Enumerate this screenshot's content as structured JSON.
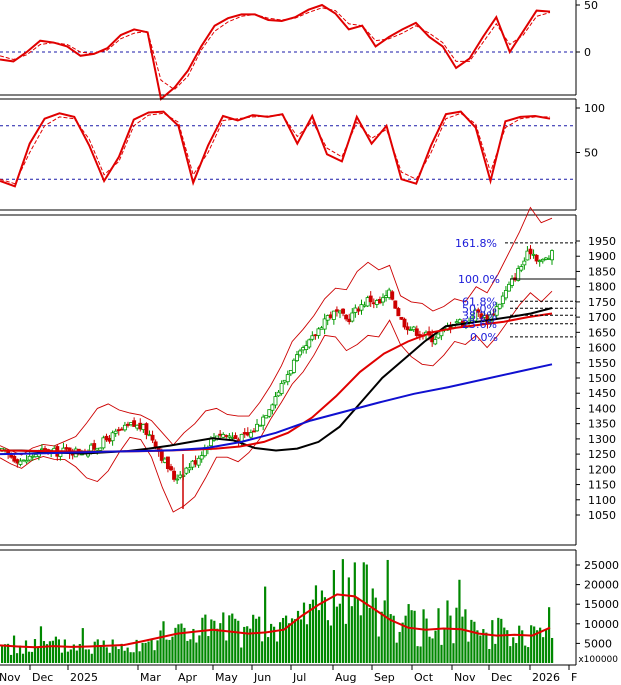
{
  "colors": {
    "background": "#ffffff",
    "indicator_line": "#e00000",
    "signal_line": "#e00000",
    "blue_dotted": "#1a1aa8",
    "candle_up": "#009900",
    "candle_down": "#cc0000",
    "ma_black": "#000000",
    "ma_red": "#e00000",
    "ma_blue": "#1010d0",
    "bollinger": "#cc0000",
    "fib_text": "#1a1ad8",
    "volume_bar": "#008800",
    "volume_ma": "#e00000",
    "axis": "#000000"
  },
  "chart_data": [
    {
      "type": "line",
      "panel": "rsi-top",
      "y_ticks": [
        "50",
        "0"
      ],
      "reference_levels": [
        0
      ],
      "series": [
        {
          "values": [
            -8,
            -10,
            0,
            12,
            10,
            6,
            -4,
            -2,
            4,
            18,
            24,
            21,
            -50,
            -38,
            -20,
            6,
            28,
            36,
            40,
            40,
            34,
            33,
            37,
            45,
            50,
            41,
            24,
            28,
            6,
            16,
            24,
            31,
            16,
            6,
            -17,
            -7,
            16,
            37,
            0,
            22,
            44,
            43
          ]
        },
        {
          "values": [
            -4,
            -8,
            -3,
            8,
            10,
            8,
            0,
            -2,
            2,
            14,
            20,
            22,
            -30,
            -40,
            -26,
            2,
            22,
            32,
            38,
            40,
            36,
            34,
            36,
            42,
            47,
            44,
            30,
            28,
            12,
            14,
            20,
            28,
            20,
            10,
            -10,
            -10,
            10,
            30,
            8,
            18,
            38,
            42
          ]
        }
      ]
    },
    {
      "type": "line",
      "panel": "stochastic",
      "y_ticks": [
        "100",
        "50"
      ],
      "reference_levels": [
        80,
        20
      ],
      "series": [
        {
          "values": [
            18,
            12,
            60,
            88,
            94,
            90,
            58,
            18,
            45,
            87,
            95,
            96,
            80,
            16,
            58,
            91,
            86,
            92,
            90,
            93,
            60,
            91,
            48,
            40,
            90,
            60,
            80,
            20,
            15,
            58,
            93,
            96,
            78,
            18,
            85,
            90,
            91,
            88
          ]
        },
        {
          "values": [
            20,
            15,
            50,
            80,
            90,
            88,
            65,
            25,
            40,
            80,
            92,
            94,
            84,
            25,
            50,
            86,
            88,
            90,
            91,
            92,
            68,
            85,
            55,
            45,
            84,
            66,
            76,
            28,
            20,
            50,
            88,
            94,
            82,
            28,
            78,
            88,
            90,
            90
          ]
        }
      ]
    },
    {
      "type": "candlestick",
      "panel": "price",
      "y_ticks": [
        "1950",
        "1900",
        "1850",
        "1800",
        "1750",
        "1700",
        "1650",
        "1600",
        "1550",
        "1500",
        "1450",
        "1400",
        "1350",
        "1300",
        "1250",
        "1200",
        "1150",
        "1100",
        "1050"
      ],
      "ylim": [
        1000,
        1965
      ],
      "close_path": [
        1258,
        1240,
        1225,
        1250,
        1262,
        1255,
        1262,
        1258,
        1262,
        1280,
        1305,
        1325,
        1345,
        1338,
        1300,
        1230,
        1170,
        1200,
        1230,
        1282,
        1320,
        1310,
        1300,
        1315,
        1360,
        1420,
        1480,
        1550,
        1590,
        1640,
        1700,
        1715,
        1690,
        1730,
        1760,
        1745,
        1780,
        1690,
        1660,
        1645,
        1630,
        1655,
        1690,
        1680,
        1720,
        1690,
        1740,
        1800,
        1860,
        1920,
        1880,
        1905
      ],
      "moving_averages": [
        {
          "color": "black",
          "values": [
            1262,
            1262,
            1258,
            1254,
            1252,
            1256,
            1260,
            1268,
            1278,
            1290,
            1302,
            1295,
            1270,
            1262,
            1268,
            1290,
            1340,
            1420,
            1500,
            1560,
            1620,
            1670,
            1680,
            1690,
            1700,
            1712,
            1730
          ]
        },
        {
          "color": "red",
          "values": [
            1262,
            1261,
            1260,
            1259,
            1258,
            1259,
            1260,
            1262,
            1264,
            1268,
            1275,
            1290,
            1320,
            1370,
            1440,
            1520,
            1580,
            1620,
            1650,
            1665,
            1675,
            1685,
            1700,
            1712
          ]
        },
        {
          "color": "blue",
          "values": [
            1250,
            1252,
            1255,
            1258,
            1260,
            1263,
            1270,
            1290,
            1320,
            1360,
            1390,
            1420,
            1448,
            1470,
            1495,
            1520,
            1545
          ]
        }
      ],
      "fibonacci": [
        {
          "label": "161.8%",
          "value": 1944
        },
        {
          "label": "100.0%",
          "value": 1825
        },
        {
          "label": "61.8%",
          "value": 1752
        },
        {
          "label": "50.0%",
          "value": 1729
        },
        {
          "label": "38.2%",
          "value": 1706
        },
        {
          "label": "23.6%",
          "value": 1678
        },
        {
          "label": "0.0%",
          "value": 1635
        }
      ]
    },
    {
      "type": "bar",
      "panel": "volume",
      "y_ticks": [
        "25000",
        "20000",
        "15000",
        "10000",
        "5000"
      ],
      "ylim": [
        0,
        28000
      ],
      "unit_label": "x100000",
      "x_ticks": [
        "Nov",
        "Dec",
        "2025",
        "Mar",
        "Apr",
        "May",
        "Jun",
        "Jul",
        "Aug",
        "Sep",
        "Oct",
        "Nov",
        "Dec",
        "2026",
        "F"
      ],
      "volume_ma": [
        4500,
        4200,
        4000,
        4300,
        4100,
        4200,
        4400,
        4600,
        5500,
        6500,
        7500,
        8000,
        8500,
        8000,
        7500,
        7800,
        8500,
        12000,
        15000,
        17500,
        17000,
        14000,
        11000,
        9000,
        8500,
        8800,
        8600,
        7500,
        7000,
        7200,
        7000,
        9000
      ]
    }
  ]
}
